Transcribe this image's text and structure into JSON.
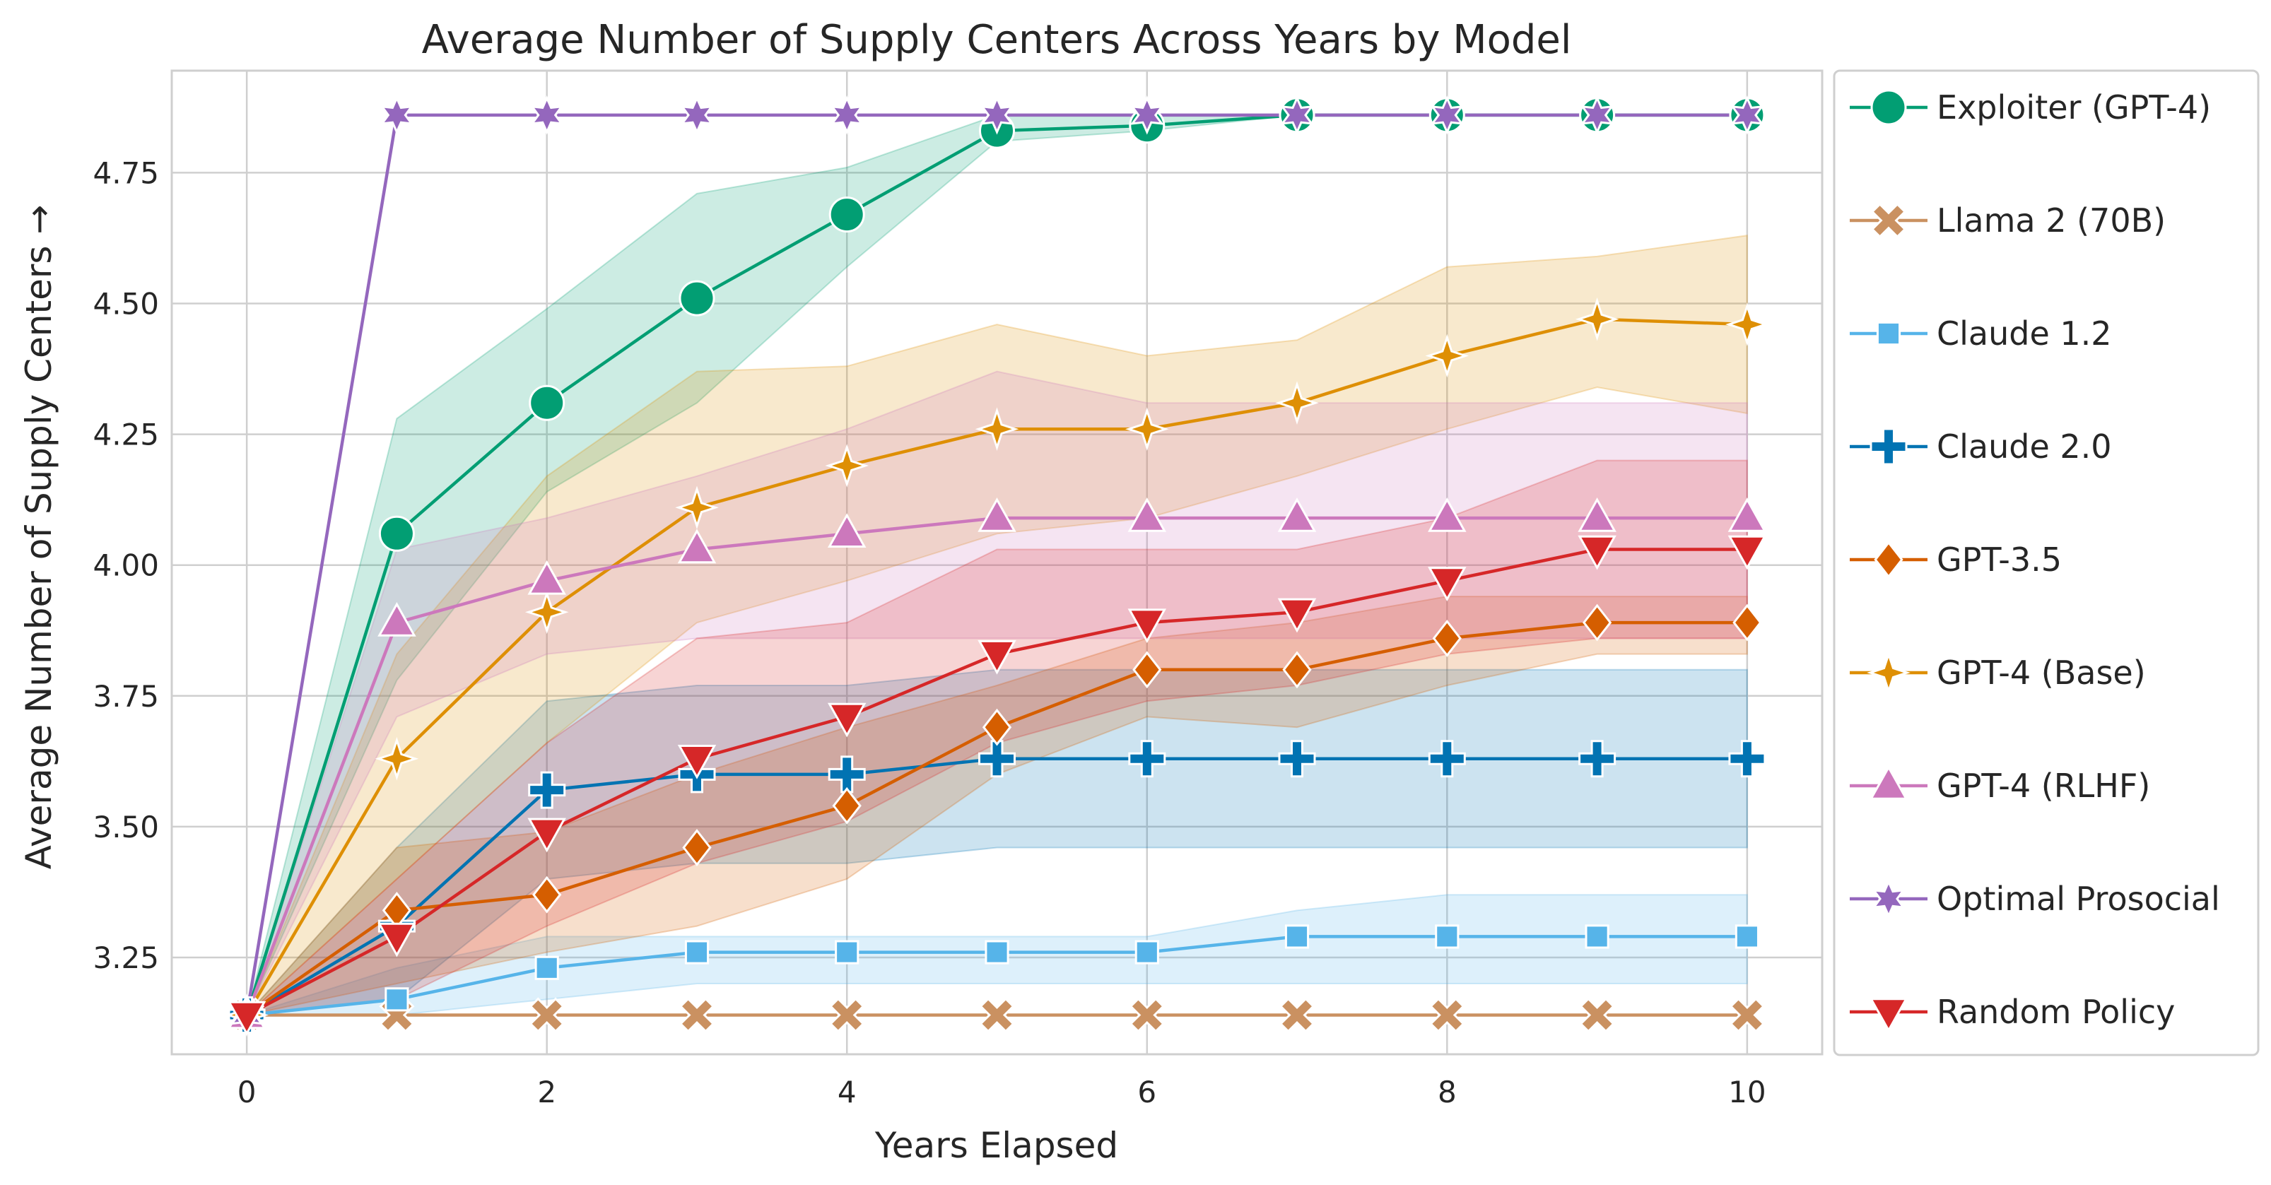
{
  "chart_data": {
    "type": "line",
    "title": "Average Number of Supply Centers Across Years by Model",
    "xlabel": "Years Elapsed",
    "ylabel": "Average Number of Supply Centers →",
    "xlim": [
      -0.5,
      10.5
    ],
    "ylim": [
      3.065,
      4.945
    ],
    "xticks": [
      0,
      2,
      4,
      6,
      8,
      10
    ],
    "yticks": [
      3.25,
      3.5,
      3.75,
      4.0,
      4.25,
      4.5,
      4.75
    ],
    "ytick_labels": [
      "3.25",
      "3.50",
      "3.75",
      "4.00",
      "4.25",
      "4.50",
      "4.75"
    ],
    "grid": true,
    "legend_position": "outside-right",
    "x": [
      0,
      1,
      2,
      3,
      4,
      5,
      6,
      7,
      8,
      9,
      10
    ],
    "series": [
      {
        "name": "Exploiter (GPT-4)",
        "color": "#029e73",
        "marker": "circle",
        "values": [
          3.14,
          4.06,
          4.31,
          4.51,
          4.67,
          4.83,
          4.84,
          4.86,
          4.86,
          4.86,
          4.86
        ],
        "ci_low": [
          3.14,
          3.78,
          4.14,
          4.31,
          4.57,
          4.81,
          4.83,
          4.86,
          4.86,
          4.86,
          4.86
        ],
        "ci_high": [
          3.14,
          4.28,
          4.49,
          4.71,
          4.76,
          4.86,
          4.86,
          4.86,
          4.86,
          4.86,
          4.86
        ]
      },
      {
        "name": "Llama 2 (70B)",
        "color": "#ca9161",
        "marker": "x",
        "values": [
          3.14,
          3.14,
          3.14,
          3.14,
          3.14,
          3.14,
          3.14,
          3.14,
          3.14,
          3.14,
          3.14
        ],
        "ci_low": [
          3.14,
          3.14,
          3.14,
          3.14,
          3.14,
          3.14,
          3.14,
          3.14,
          3.14,
          3.14,
          3.14
        ],
        "ci_high": [
          3.14,
          3.14,
          3.14,
          3.14,
          3.14,
          3.14,
          3.14,
          3.14,
          3.14,
          3.14,
          3.14
        ]
      },
      {
        "name": "Claude 1.2",
        "color": "#56b4e9",
        "marker": "square",
        "values": [
          3.14,
          3.17,
          3.23,
          3.26,
          3.26,
          3.26,
          3.26,
          3.29,
          3.29,
          3.29,
          3.29
        ],
        "ci_low": [
          3.14,
          3.14,
          3.17,
          3.2,
          3.2,
          3.2,
          3.2,
          3.2,
          3.2,
          3.2,
          3.2
        ],
        "ci_high": [
          3.14,
          3.23,
          3.29,
          3.29,
          3.29,
          3.29,
          3.29,
          3.34,
          3.37,
          3.37,
          3.37
        ]
      },
      {
        "name": "Claude 2.0",
        "color": "#0173b2",
        "marker": "plus",
        "values": [
          3.14,
          3.31,
          3.57,
          3.6,
          3.6,
          3.63,
          3.63,
          3.63,
          3.63,
          3.63,
          3.63
        ],
        "ci_low": [
          3.14,
          3.17,
          3.4,
          3.43,
          3.43,
          3.46,
          3.46,
          3.46,
          3.46,
          3.46,
          3.46
        ],
        "ci_high": [
          3.14,
          3.46,
          3.74,
          3.77,
          3.77,
          3.8,
          3.8,
          3.8,
          3.8,
          3.8,
          3.8
        ]
      },
      {
        "name": "GPT-3.5",
        "color": "#d55e00",
        "marker": "diamond",
        "values": [
          3.14,
          3.34,
          3.37,
          3.46,
          3.54,
          3.69,
          3.8,
          3.8,
          3.86,
          3.89,
          3.89
        ],
        "ci_low": [
          3.14,
          3.2,
          3.26,
          3.31,
          3.4,
          3.6,
          3.71,
          3.69,
          3.77,
          3.83,
          3.83
        ],
        "ci_high": [
          3.14,
          3.46,
          3.49,
          3.6,
          3.69,
          3.77,
          3.86,
          3.89,
          3.94,
          3.94,
          3.94
        ]
      },
      {
        "name": "GPT-4 (Base)",
        "color": "#de8f05",
        "marker": "star4",
        "values": [
          3.14,
          3.63,
          3.91,
          4.11,
          4.19,
          4.26,
          4.26,
          4.31,
          4.4,
          4.47,
          4.46
        ],
        "ci_low": [
          3.14,
          3.4,
          3.66,
          3.89,
          3.97,
          4.06,
          4.09,
          4.17,
          4.26,
          4.34,
          4.29
        ],
        "ci_high": [
          3.14,
          3.83,
          4.17,
          4.37,
          4.38,
          4.46,
          4.4,
          4.43,
          4.57,
          4.59,
          4.63
        ]
      },
      {
        "name": "GPT-4 (RLHF)",
        "color": "#cc78bc",
        "marker": "triangle-up",
        "values": [
          3.14,
          3.89,
          3.97,
          4.03,
          4.06,
          4.09,
          4.09,
          4.09,
          4.09,
          4.09,
          4.09
        ],
        "ci_low": [
          3.14,
          3.71,
          3.83,
          3.86,
          3.86,
          3.86,
          3.86,
          3.86,
          3.86,
          3.86,
          3.86
        ],
        "ci_high": [
          3.14,
          4.03,
          4.09,
          4.17,
          4.26,
          4.37,
          4.31,
          4.31,
          4.31,
          4.31,
          4.31
        ]
      },
      {
        "name": "Optimal Prosocial",
        "color": "#9467bd",
        "marker": "star6",
        "values": [
          3.14,
          4.86,
          4.86,
          4.86,
          4.86,
          4.86,
          4.86,
          4.86,
          4.86,
          4.86,
          4.86
        ],
        "ci_low": [
          3.14,
          4.86,
          4.86,
          4.86,
          4.86,
          4.86,
          4.86,
          4.86,
          4.86,
          4.86,
          4.86
        ],
        "ci_high": [
          3.14,
          4.86,
          4.86,
          4.86,
          4.86,
          4.86,
          4.86,
          4.86,
          4.86,
          4.86,
          4.86
        ]
      },
      {
        "name": "Random Policy",
        "color": "#d62728",
        "marker": "triangle-down",
        "values": [
          3.14,
          3.29,
          3.49,
          3.63,
          3.71,
          3.83,
          3.89,
          3.91,
          3.97,
          4.03,
          4.03
        ],
        "ci_low": [
          3.14,
          3.17,
          3.31,
          3.43,
          3.51,
          3.66,
          3.74,
          3.77,
          3.83,
          3.86,
          3.86
        ],
        "ci_high": [
          3.14,
          3.4,
          3.66,
          3.86,
          3.89,
          4.03,
          4.03,
          4.03,
          4.09,
          4.2,
          4.2
        ]
      }
    ]
  }
}
